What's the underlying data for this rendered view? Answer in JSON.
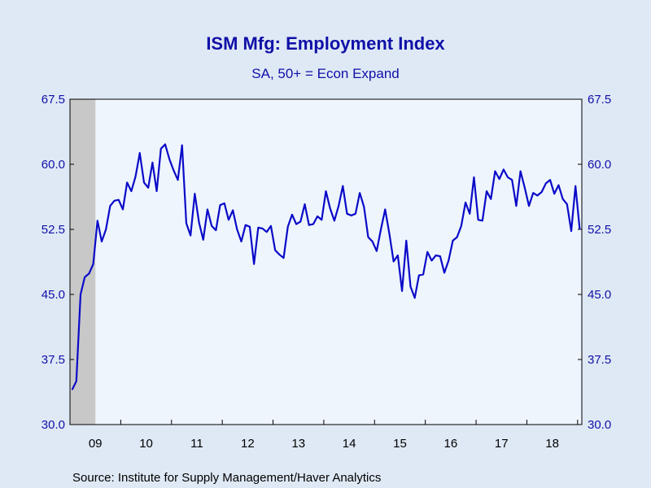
{
  "chart_data": {
    "type": "line",
    "title": "ISM Mfg: Employment Index",
    "subtitle": "SA, 50+ = Econ Expand",
    "source": "Source:  Institute for Supply Management/Haver Analytics",
    "ylim": [
      30.0,
      67.5
    ],
    "yticks": [
      "30.0",
      "37.5",
      "45.0",
      "52.5",
      "60.0",
      "67.5"
    ],
    "x_tick_labels": [
      "09",
      "10",
      "11",
      "12",
      "13",
      "14",
      "15",
      "16",
      "17",
      "18"
    ],
    "x_start": "2009-01",
    "recession_shading": {
      "from": "2009-01",
      "to": "2009-06"
    },
    "colors": {
      "line": "#0a0ac8",
      "plot_bg": "#eef5fd",
      "page_bg": "#dfe9f5",
      "text": "#1010a8",
      "shade": "#c8c8c8"
    },
    "series": [
      {
        "values": [
          34.0,
          35.0,
          45.0,
          47.0,
          47.4,
          48.5,
          53.5,
          51.1,
          52.5,
          55.2,
          55.8,
          55.9,
          54.8,
          57.9,
          56.9,
          58.6,
          61.3,
          57.9,
          57.3,
          60.2,
          56.9,
          61.8,
          62.3,
          60.6,
          59.3,
          58.2,
          62.2,
          53.2,
          51.8,
          56.6,
          53.3,
          51.3,
          54.8,
          52.9,
          52.4,
          55.3,
          55.5,
          53.6,
          54.7,
          52.5,
          51.1,
          53.0,
          52.8,
          48.5,
          52.7,
          52.6,
          52.2,
          52.9,
          50.1,
          49.6,
          49.2,
          52.8,
          54.2,
          53.1,
          53.4,
          55.4,
          53.0,
          53.1,
          54.0,
          53.6,
          56.9,
          54.9,
          53.5,
          55.2,
          57.5,
          54.3,
          54.1,
          54.3,
          56.7,
          55.1,
          51.6,
          51.1,
          50.0,
          52.5,
          54.8,
          52.0,
          48.8,
          49.5,
          45.4,
          51.2,
          45.9,
          44.6,
          47.2,
          47.3,
          49.9,
          48.9,
          49.5,
          49.4,
          47.5,
          48.9,
          51.2,
          51.6,
          52.9,
          55.6,
          54.3,
          58.5,
          53.6,
          53.5,
          56.9,
          56.0,
          59.2,
          58.3,
          59.4,
          58.5,
          58.2,
          55.2,
          59.2,
          57.3,
          55.2,
          56.7,
          56.4,
          56.8,
          57.8,
          58.2,
          56.6,
          57.6,
          56.0,
          55.4,
          52.3,
          57.5,
          52.5
        ]
      }
    ]
  }
}
